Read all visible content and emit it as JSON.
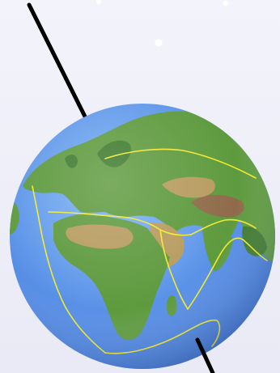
{
  "scene": {
    "subject": "earth-globe",
    "colors": {
      "background_top": "#f3f3fb",
      "background_bottom": "#eaeaf6",
      "ocean_deep": "#3f74d6",
      "ocean_mid": "#5b93e8",
      "ocean_shallow": "#7fb6f4",
      "land_green": "#5e9a3e",
      "land_dark_green": "#3f7a2e",
      "land_desert": "#b79b5e",
      "land_mountain": "#8f6b4a",
      "plate_boundary": "#f2ea2a",
      "axis_line": "#000000",
      "star": "#ffffff"
    }
  }
}
